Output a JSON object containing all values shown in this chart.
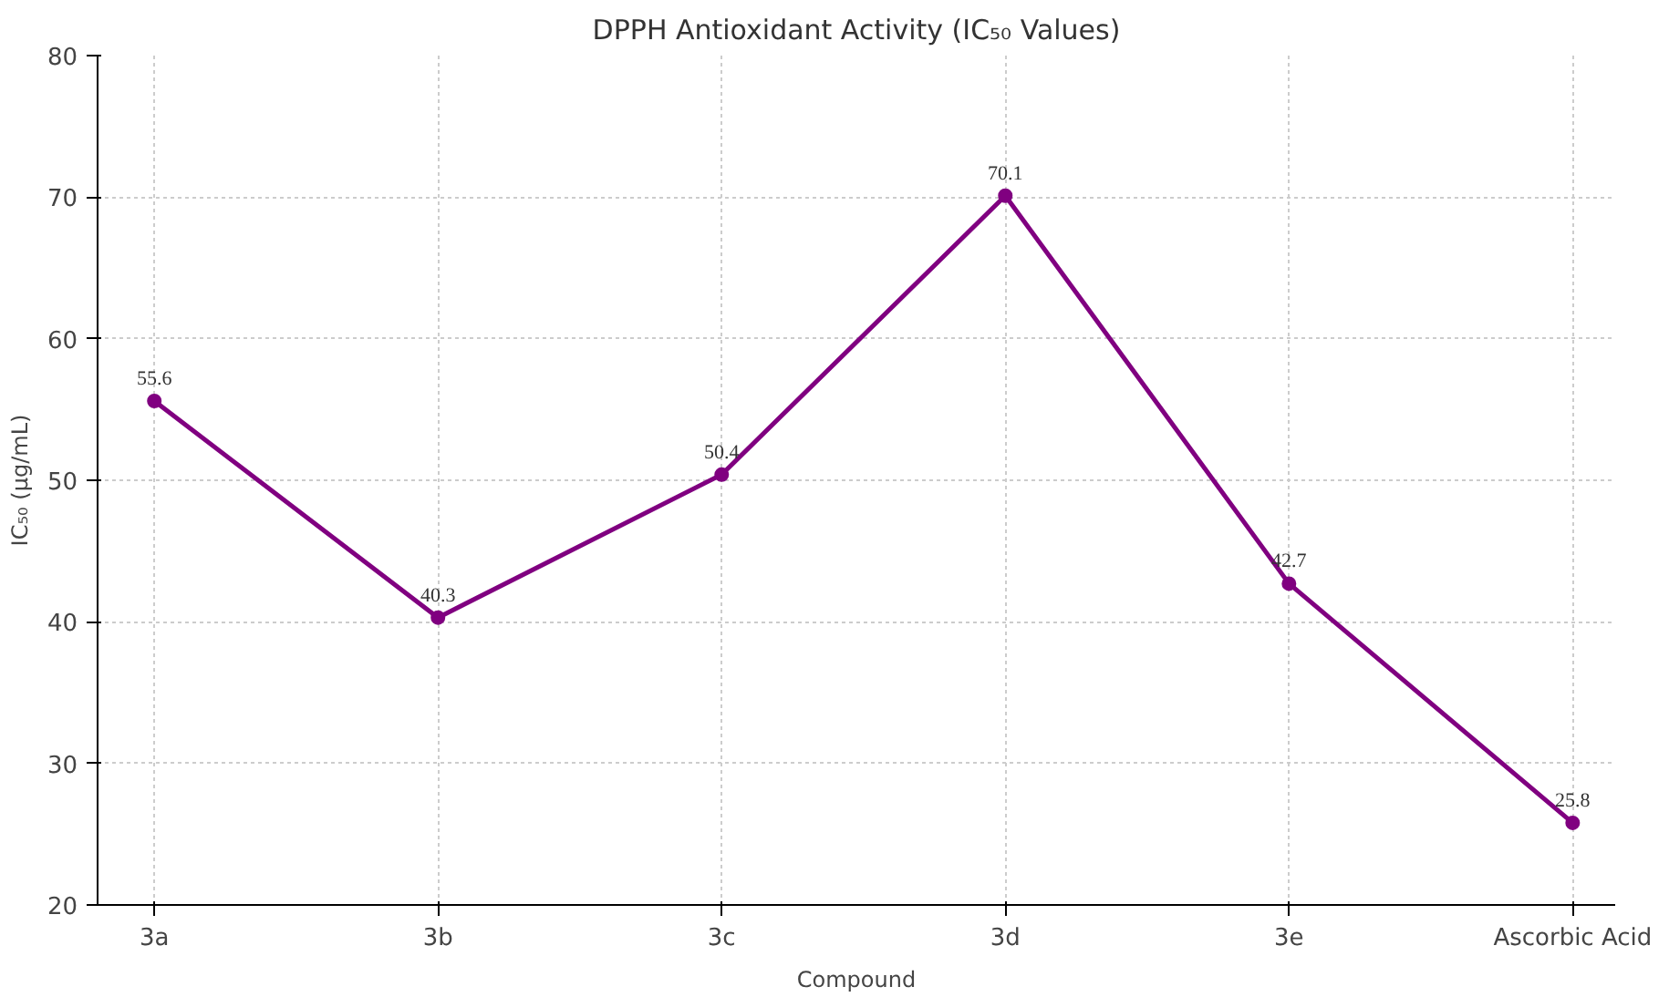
{
  "chart_data": {
    "type": "line",
    "title": "DPPH Antioxidant Activity (IC₅₀ Values)",
    "xlabel": "Compound",
    "ylabel": "IC₅₀ (μg/mL)",
    "categories": [
      "3a",
      "3b",
      "3c",
      "3d",
      "3e",
      "Ascorbic Acid"
    ],
    "series": [
      {
        "color": "#800080",
        "values": [
          55.6,
          40.3,
          50.4,
          70.1,
          42.7,
          25.8
        ]
      }
    ],
    "ylim": [
      20,
      80
    ],
    "yticks": [
      20,
      30,
      40,
      50,
      60,
      70,
      80
    ],
    "grid": true,
    "marker": "circle",
    "line_style": "solid",
    "data_labels": true
  }
}
